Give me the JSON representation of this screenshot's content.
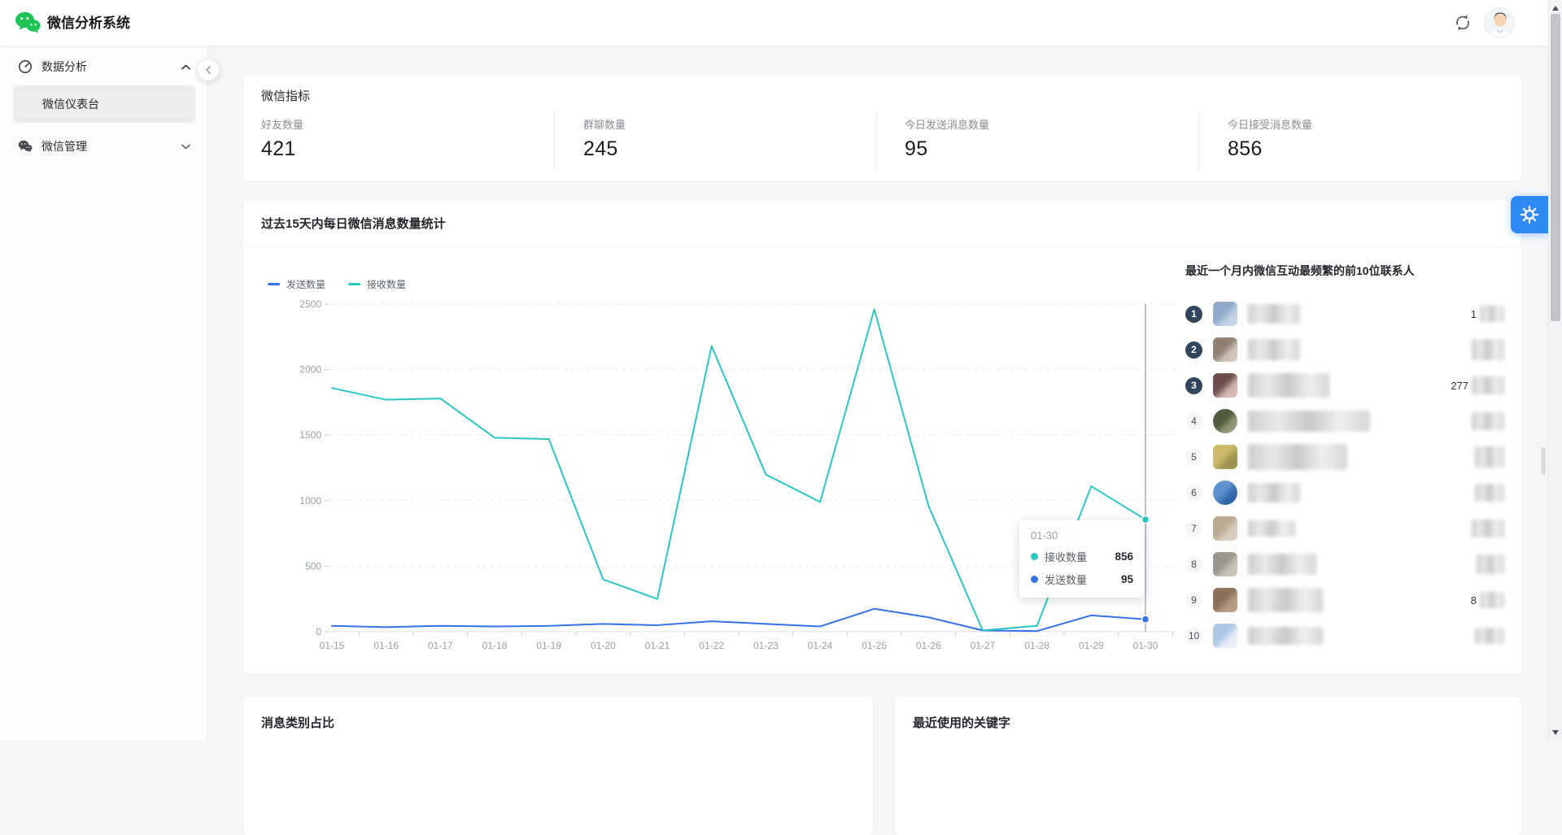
{
  "theme": {
    "primary": "#2E8BF6",
    "rank": "#31455C",
    "wechat_green": "#1DC353"
  },
  "header": {
    "title": "微信分析系统"
  },
  "sidebar": {
    "items": [
      {
        "label": "数据分析",
        "icon": "dashboard-gauge-icon",
        "state": "expanded"
      },
      {
        "label": "微信仪表台",
        "active": true
      },
      {
        "label": "微信管理",
        "icon": "wechat-icon",
        "state": "collapsed"
      }
    ]
  },
  "metrics": {
    "title": "微信指标",
    "items": [
      {
        "label": "好友数量",
        "value": "421"
      },
      {
        "label": "群聊数量",
        "value": "245"
      },
      {
        "label": "今日发送消息数量",
        "value": "95"
      },
      {
        "label": "今日接受消息数量",
        "value": "856"
      }
    ]
  },
  "chart_card": {
    "title": "过去15天内每日微信消息数量统计"
  },
  "chart_data": {
    "type": "line",
    "x": [
      "01-15",
      "01-16",
      "01-17",
      "01-18",
      "01-19",
      "01-20",
      "01-21",
      "01-22",
      "01-23",
      "01-24",
      "01-25",
      "01-26",
      "01-27",
      "01-28",
      "01-29",
      "01-30"
    ],
    "series": [
      {
        "name": "发送数量",
        "color": "#3671E8",
        "values": [
          45,
          35,
          45,
          40,
          45,
          60,
          50,
          80,
          60,
          40,
          175,
          110,
          10,
          5,
          125,
          95
        ]
      },
      {
        "name": "接收数量",
        "color": "#2BC7C3",
        "values": [
          1860,
          1770,
          1780,
          1480,
          1470,
          400,
          250,
          2180,
          1200,
          990,
          2460,
          960,
          10,
          45,
          1110,
          856
        ]
      }
    ],
    "ylim": [
      0,
      2500
    ],
    "yticks": [
      0,
      500,
      1000,
      1500,
      2000,
      2500
    ],
    "grid": "horizontal-dashed",
    "legend_position": "top-left",
    "hover_index": 15,
    "tooltip": {
      "title": "01-30",
      "rows": [
        {
          "name": "接收数量",
          "value": "856",
          "color": "#2BC7C3"
        },
        {
          "name": "发送数量",
          "value": "95",
          "color": "#3671E8"
        }
      ]
    }
  },
  "contacts": {
    "title": "最近一个月内微信互动最频繁的前10位联系人",
    "note": "contact names, avatars and counts are blurred in the source image",
    "items": [
      {
        "rank": "1",
        "top3": true,
        "round": false,
        "c1": "#8fa8cc",
        "c2": "#c3d2e6",
        "name_w": 64,
        "name_h": 24,
        "count_w": 30,
        "count_h": 20,
        "count_prefix": "1"
      },
      {
        "rank": "2",
        "top3": true,
        "round": false,
        "c1": "#8d7e70",
        "c2": "#cfc5ba",
        "name_w": 64,
        "name_h": 26,
        "count_w": 40,
        "count_h": 26,
        "count_prefix": ""
      },
      {
        "rank": "3",
        "top3": true,
        "round": false,
        "c1": "#6b4a48",
        "c2": "#d8b7b0",
        "name_w": 100,
        "name_h": 30,
        "count_w": 40,
        "count_h": 22,
        "count_prefix": "277"
      },
      {
        "rank": "4",
        "top3": false,
        "round": true,
        "c1": "#4f5a3c",
        "c2": "#909877",
        "name_w": 150,
        "name_h": 26,
        "count_w": 40,
        "count_h": 22,
        "count_prefix": ""
      },
      {
        "rank": "5",
        "top3": false,
        "round": false,
        "c1": "#cdb968",
        "c2": "#9a914e",
        "name_w": 122,
        "name_h": 32,
        "count_w": 36,
        "count_h": 26,
        "count_prefix": ""
      },
      {
        "rank": "6",
        "top3": false,
        "round": true,
        "c1": "#5e92cf",
        "c2": "#2f63a8",
        "name_w": 64,
        "name_h": 24,
        "count_w": 36,
        "count_h": 22,
        "count_prefix": ""
      },
      {
        "rank": "7",
        "top3": false,
        "round": false,
        "c1": "#b9aa92",
        "c2": "#d8cec0",
        "name_w": 58,
        "name_h": 20,
        "count_w": 40,
        "count_h": 22,
        "count_prefix": ""
      },
      {
        "rank": "8",
        "top3": false,
        "round": false,
        "c1": "#9b9387",
        "c2": "#c8c1b7",
        "name_w": 84,
        "name_h": 26,
        "count_w": 34,
        "count_h": 24,
        "count_prefix": ""
      },
      {
        "rank": "9",
        "top3": false,
        "round": false,
        "c1": "#8c6e57",
        "c2": "#b89a82",
        "name_w": 92,
        "name_h": 30,
        "count_w": 30,
        "count_h": 20,
        "count_prefix": "8"
      },
      {
        "rank": "10",
        "top3": false,
        "round": false,
        "c1": "#adc6e6",
        "c2": "#e9eff7",
        "name_w": 92,
        "name_h": 22,
        "count_w": 36,
        "count_h": 20,
        "count_prefix": ""
      }
    ]
  },
  "bottom_cards": [
    {
      "title": "消息类别占比"
    },
    {
      "title": "最近使用的关键字"
    }
  ]
}
